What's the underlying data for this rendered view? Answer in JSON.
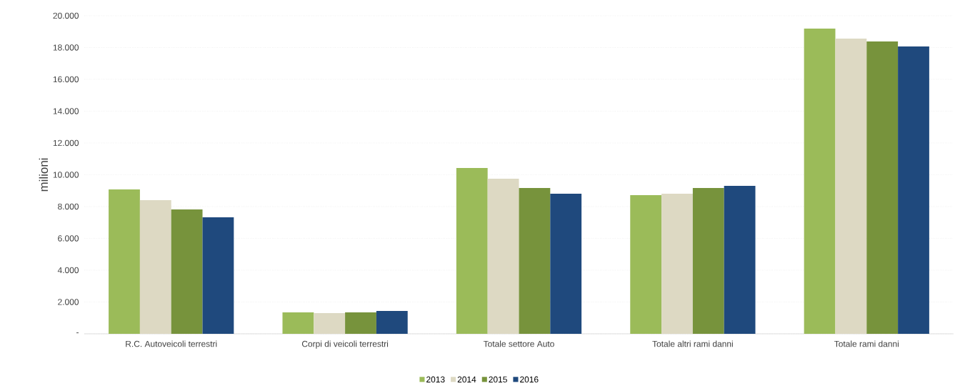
{
  "chart_data": {
    "type": "bar",
    "ylabel": "milioni",
    "categories": [
      "R.C. Autoveicoli terrestri",
      "Corpi di veicoli terrestri",
      "Totale settore Auto",
      "Totale altri rami danni",
      "Totale rami danni"
    ],
    "series": [
      {
        "name": "2013",
        "color": "#9bbb59",
        "values": [
          9080,
          1350,
          10430,
          8720,
          19190
        ]
      },
      {
        "name": "2014",
        "color": "#ddd9c3",
        "values": [
          8400,
          1300,
          9750,
          8810,
          18560
        ]
      },
      {
        "name": "2015",
        "color": "#77933c",
        "values": [
          7820,
          1350,
          9170,
          9170,
          18380
        ]
      },
      {
        "name": "2016",
        "color": "#1f497d",
        "values": [
          7330,
          1440,
          8810,
          9300,
          18070
        ]
      }
    ],
    "ylim": [
      0,
      20000
    ],
    "yticks": [
      {
        "value": 0,
        "label": "-"
      },
      {
        "value": 2000,
        "label": "2.000"
      },
      {
        "value": 4000,
        "label": "4.000"
      },
      {
        "value": 6000,
        "label": "6.000"
      },
      {
        "value": 8000,
        "label": "8.000"
      },
      {
        "value": 10000,
        "label": "10.000"
      },
      {
        "value": 12000,
        "label": "12.000"
      },
      {
        "value": 14000,
        "label": "14.000"
      },
      {
        "value": 16000,
        "label": "16.000"
      },
      {
        "value": 18000,
        "label": "18.000"
      },
      {
        "value": 20000,
        "label": "20.000"
      }
    ],
    "grid": "y",
    "legend": "bottom"
  }
}
